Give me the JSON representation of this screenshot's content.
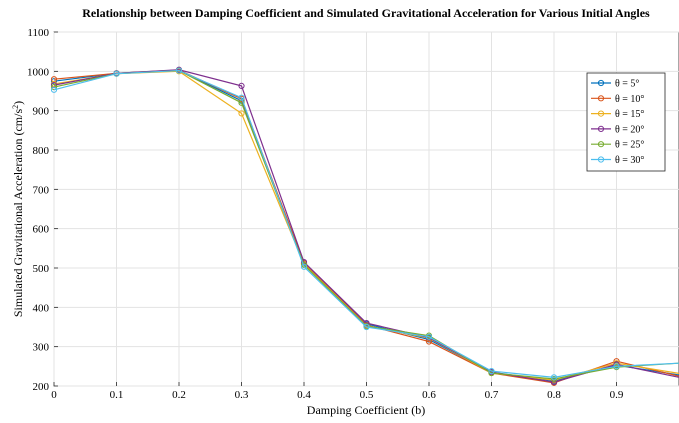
{
  "chart_data": {
    "type": "line",
    "title": "Relationship between Damping Coefficient and Simulated Gravitational Acceleration for Various Initial Angles",
    "xlabel": "Damping Coefficient (b)",
    "ylabel_main": "Simulated Gravitational Acceleration (cm/s",
    "ylabel_sup": "2",
    "ylabel_close": ")",
    "xlim": [
      0,
      1
    ],
    "ylim": [
      200,
      1100
    ],
    "grid": true,
    "legend_position": "top-right",
    "x": [
      0,
      0.1,
      0.2,
      0.3,
      0.4,
      0.5,
      0.6,
      0.7,
      0.8,
      0.9,
      1.0
    ],
    "x_tick_labels": [
      "0",
      "0.1",
      "0.2",
      "0.3",
      "0.4",
      "0.5",
      "0.6",
      "0.7",
      "0.8",
      "0.9"
    ],
    "y_tick_labels": [
      "200",
      "300",
      "400",
      "500",
      "600",
      "700",
      "800",
      "900",
      "1000",
      "1100"
    ],
    "series": [
      {
        "name": "θ = 5°",
        "color": "#0072bd",
        "values": [
          975,
          995,
          1003,
          925,
          512,
          358,
          318,
          235,
          213,
          253,
          228
        ]
      },
      {
        "name": "θ = 10°",
        "color": "#d95319",
        "values": [
          980,
          995,
          1003,
          930,
          512,
          355,
          313,
          233,
          208,
          263,
          225
        ]
      },
      {
        "name": "θ = 15°",
        "color": "#edb120",
        "values": [
          968,
          994,
          1000,
          893,
          510,
          353,
          322,
          233,
          215,
          258,
          232
        ]
      },
      {
        "name": "θ = 20°",
        "color": "#7e2f8e",
        "values": [
          965,
          995,
          1004,
          963,
          515,
          360,
          323,
          235,
          210,
          255,
          222
        ]
      },
      {
        "name": "θ = 25°",
        "color": "#77ac30",
        "values": [
          960,
          994,
          1002,
          920,
          508,
          352,
          328,
          233,
          218,
          248,
          258
        ]
      },
      {
        "name": "θ = 30°",
        "color": "#4dbeee",
        "values": [
          953,
          994,
          1002,
          933,
          503,
          350,
          325,
          238,
          222,
          250,
          258
        ]
      }
    ]
  }
}
